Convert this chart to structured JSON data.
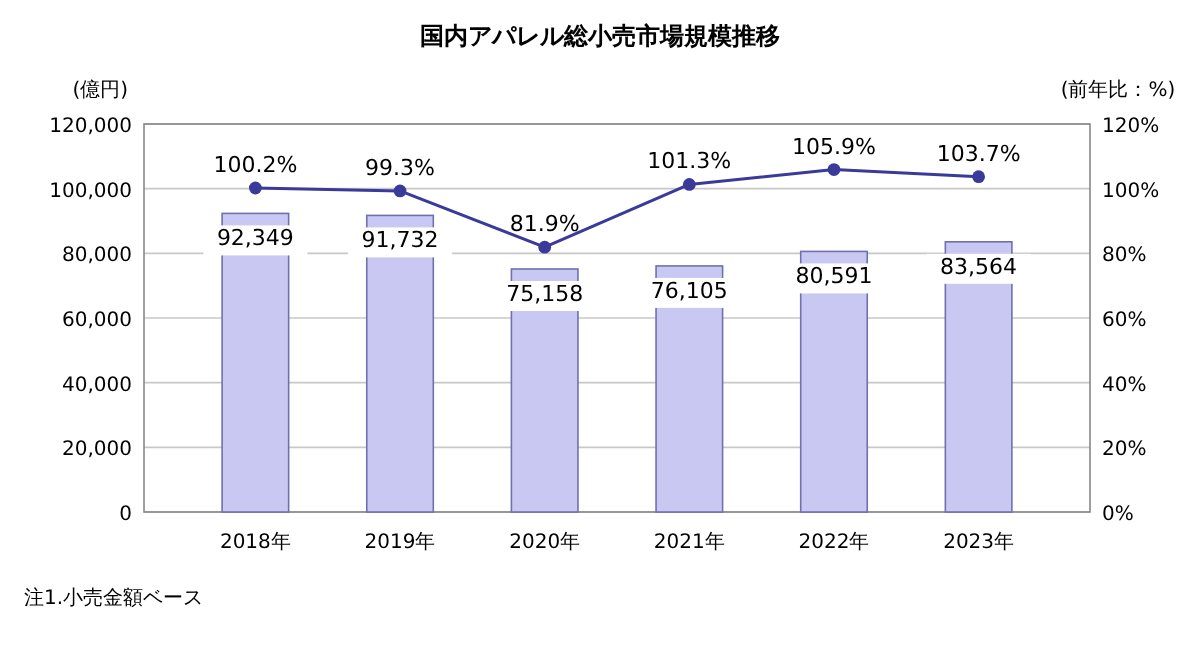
{
  "chart_data": {
    "type": "bar",
    "title": "国内アパレル総小売市場規模推移",
    "categories": [
      "2018年",
      "2019年",
      "2020年",
      "2021年",
      "2022年",
      "2023年"
    ],
    "series": [
      {
        "color": "#c8c8f2",
        "values": [
          92349,
          91732,
          75158,
          76105,
          80591,
          83564
        ],
        "value_labels": [
          "92,349",
          "91,732",
          "75,158",
          "76,105",
          "80,591",
          "83,564"
        ]
      },
      {
        "type": "line",
        "axis": "y2",
        "color": "#3a3a9a",
        "values": [
          100.2,
          99.3,
          81.9,
          101.3,
          105.9,
          103.7
        ],
        "value_labels": [
          "100.2%",
          "99.3%",
          "81.9%",
          "101.3%",
          "105.9%",
          "103.7%"
        ],
        "marker": "circle"
      }
    ],
    "ylabel": "(億円)",
    "y2label": "(前年比：%)",
    "ylim": [
      0,
      120000
    ],
    "yticks": [
      {
        "value": 0,
        "label": "0"
      },
      {
        "value": 20000,
        "label": "20,000"
      },
      {
        "value": 40000,
        "label": "40,000"
      },
      {
        "value": 60000,
        "label": "60,000"
      },
      {
        "value": 80000,
        "label": "80,000"
      },
      {
        "value": 100000,
        "label": "100,000"
      },
      {
        "value": 120000,
        "label": "120,000"
      }
    ],
    "y2lim": [
      0,
      120
    ],
    "y2ticks": [
      {
        "value": 0,
        "label": "0%"
      },
      {
        "value": 20,
        "label": "20%"
      },
      {
        "value": 40,
        "label": "40%"
      },
      {
        "value": 60,
        "label": "60%"
      },
      {
        "value": 80,
        "label": "80%"
      },
      {
        "value": 100,
        "label": "100%"
      },
      {
        "value": 120,
        "label": "120%"
      }
    ],
    "grid": "y",
    "annotations": [
      "注1.小売金額ベース"
    ]
  }
}
